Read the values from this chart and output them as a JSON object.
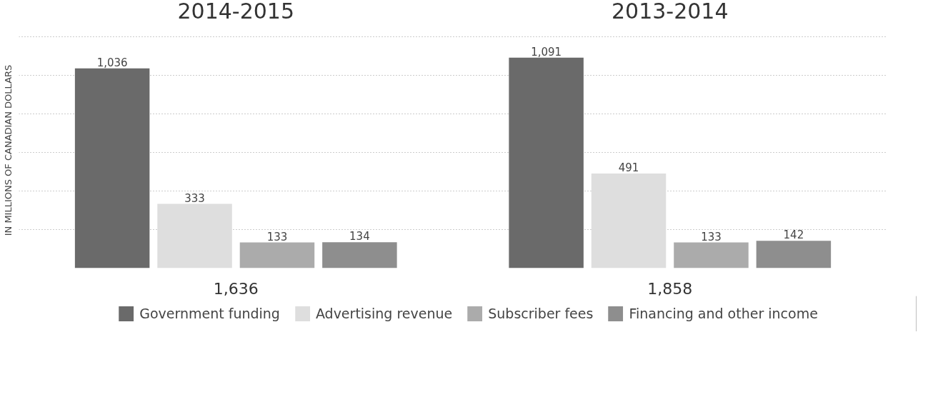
{
  "chart_data": {
    "type": "bar",
    "categories": [
      "2014-2015",
      "2013-2014"
    ],
    "totals": [
      "1,636",
      "1,858"
    ],
    "ylabel": "IN MILLIONS OF CANADIAN DOLLARS",
    "series": [
      {
        "name": "Government funding",
        "color": "#6a6a6a",
        "values": [
          1036,
          1091
        ],
        "value_labels": [
          "1,036",
          "1,091"
        ]
      },
      {
        "name": "Advertising revenue",
        "color": "#dedede",
        "values": [
          333,
          491
        ],
        "value_labels": [
          "333",
          "491"
        ]
      },
      {
        "name": "Subscriber fees",
        "color": "#ababab",
        "values": [
          133,
          133
        ],
        "value_labels": [
          "133",
          "133"
        ]
      },
      {
        "name": "Financing and other income",
        "color": "#8e8e8e",
        "values": [
          134,
          142
        ],
        "value_labels": [
          "134",
          "142"
        ]
      }
    ],
    "grid": "y",
    "legend": "bottom",
    "tick_labels": "x"
  }
}
